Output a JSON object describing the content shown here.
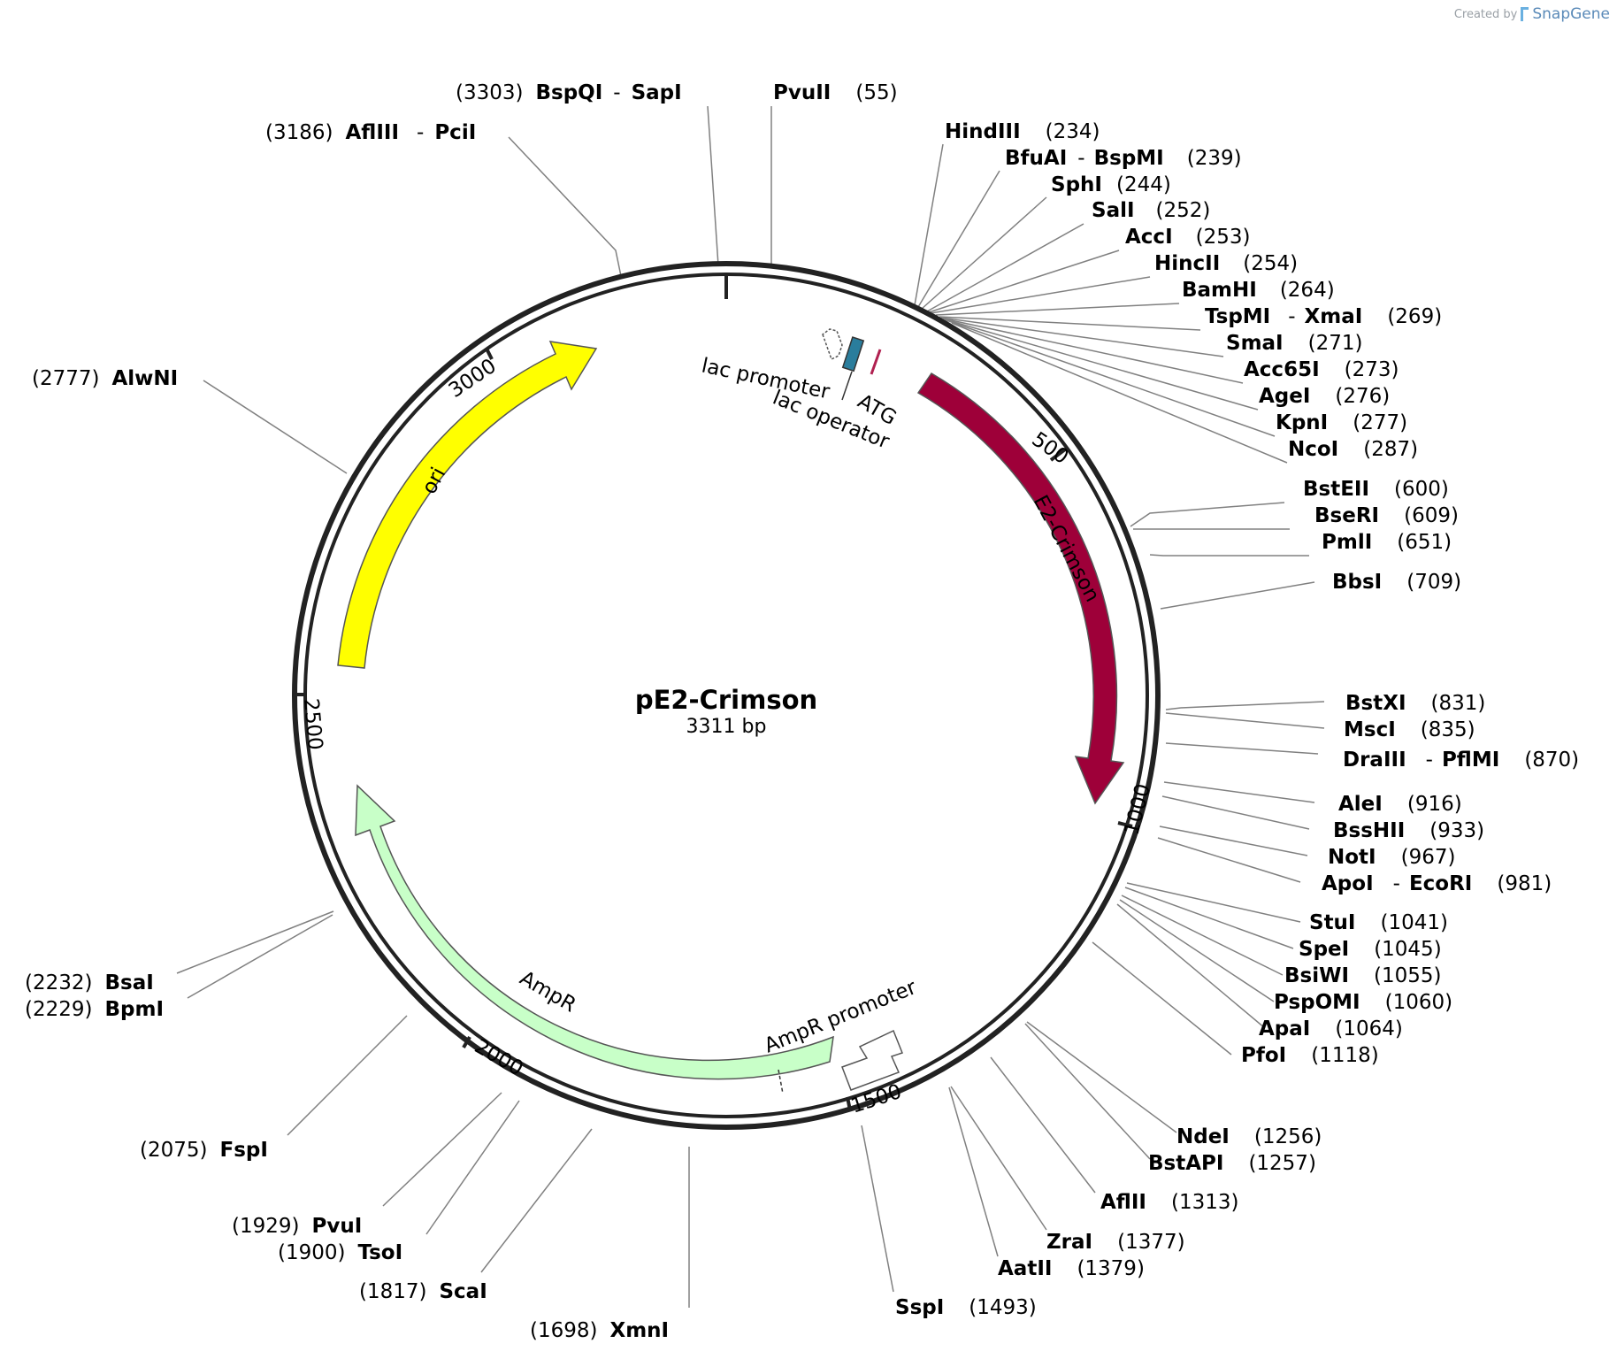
{
  "credit": {
    "prefix": "Created by",
    "brand": "SnapGene"
  },
  "plasmid": {
    "name": "pE2-Crimson",
    "size_label": "3311 bp"
  },
  "ticks": [
    "500",
    "1000",
    "1500",
    "2000",
    "2500",
    "3000"
  ],
  "features": [
    {
      "name": "E2-Crimson",
      "color": "#9e0039"
    },
    {
      "name": "ori",
      "color": "#ffff00"
    },
    {
      "name": "AmpR",
      "color": "#c8ffc8"
    },
    {
      "name": "AmpR promoter",
      "color": "#ffffff"
    },
    {
      "name": "lac promoter",
      "color": "#ffffff"
    },
    {
      "name": "lac operator",
      "color": "#2a7d9c"
    },
    {
      "name": "ATG",
      "color": "#b02050"
    }
  ],
  "sites": [
    {
      "pos": "(3303)",
      "name": "BspQI",
      "extra": "SapI"
    },
    {
      "pos": "(55)",
      "name": "PvuII",
      "extra": ""
    },
    {
      "pos": "(3186)",
      "name": "AflIII",
      "extra": "PciI"
    },
    {
      "pos": "(234)",
      "name": "HindIII",
      "extra": ""
    },
    {
      "pos": "(239)",
      "name": "BfuAI",
      "extra": "BspMI"
    },
    {
      "pos": "(244)",
      "name": "SphI",
      "extra": ""
    },
    {
      "pos": "(252)",
      "name": "SalI",
      "extra": ""
    },
    {
      "pos": "(253)",
      "name": "AccI",
      "extra": ""
    },
    {
      "pos": "(254)",
      "name": "HincII",
      "extra": ""
    },
    {
      "pos": "(264)",
      "name": "BamHI",
      "extra": ""
    },
    {
      "pos": "(269)",
      "name": "TspMI",
      "extra": "XmaI"
    },
    {
      "pos": "(271)",
      "name": "SmaI",
      "extra": ""
    },
    {
      "pos": "(273)",
      "name": "Acc65I",
      "extra": ""
    },
    {
      "pos": "(276)",
      "name": "AgeI",
      "extra": ""
    },
    {
      "pos": "(277)",
      "name": "KpnI",
      "extra": ""
    },
    {
      "pos": "(287)",
      "name": "NcoI",
      "extra": ""
    },
    {
      "pos": "(600)",
      "name": "BstEII",
      "extra": ""
    },
    {
      "pos": "(609)",
      "name": "BseRI",
      "extra": ""
    },
    {
      "pos": "(651)",
      "name": "PmlI",
      "extra": ""
    },
    {
      "pos": "(709)",
      "name": "BbsI",
      "extra": ""
    },
    {
      "pos": "(831)",
      "name": "BstXI",
      "extra": ""
    },
    {
      "pos": "(835)",
      "name": "MscI",
      "extra": ""
    },
    {
      "pos": "(870)",
      "name": "DraIII",
      "extra": "PflMI"
    },
    {
      "pos": "(916)",
      "name": "AleI",
      "extra": ""
    },
    {
      "pos": "(933)",
      "name": "BssHII",
      "extra": ""
    },
    {
      "pos": "(967)",
      "name": "NotI",
      "extra": ""
    },
    {
      "pos": "(981)",
      "name": "ApoI",
      "extra": "EcoRI"
    },
    {
      "pos": "(1041)",
      "name": "StuI",
      "extra": ""
    },
    {
      "pos": "(1045)",
      "name": "SpeI",
      "extra": ""
    },
    {
      "pos": "(1055)",
      "name": "BsiWI",
      "extra": ""
    },
    {
      "pos": "(1060)",
      "name": "PspOMI",
      "extra": ""
    },
    {
      "pos": "(1064)",
      "name": "ApaI",
      "extra": ""
    },
    {
      "pos": "(1118)",
      "name": "PfoI",
      "extra": ""
    },
    {
      "pos": "(1256)",
      "name": "NdeI",
      "extra": ""
    },
    {
      "pos": "(1257)",
      "name": "BstAPI",
      "extra": ""
    },
    {
      "pos": "(1313)",
      "name": "AflII",
      "extra": ""
    },
    {
      "pos": "(1377)",
      "name": "ZraI",
      "extra": ""
    },
    {
      "pos": "(1379)",
      "name": "AatII",
      "extra": ""
    },
    {
      "pos": "(1493)",
      "name": "SspI",
      "extra": ""
    },
    {
      "pos": "(2777)",
      "name": "AlwNI",
      "extra": ""
    },
    {
      "pos": "(2232)",
      "name": "BsaI",
      "extra": ""
    },
    {
      "pos": "(2229)",
      "name": "BpmI",
      "extra": ""
    },
    {
      "pos": "(2075)",
      "name": "FspI",
      "extra": ""
    },
    {
      "pos": "(1929)",
      "name": "PvuI",
      "extra": ""
    },
    {
      "pos": "(1900)",
      "name": "TsoI",
      "extra": ""
    },
    {
      "pos": "(1817)",
      "name": "ScaI",
      "extra": ""
    },
    {
      "pos": "(1698)",
      "name": "XmnI",
      "extra": ""
    }
  ]
}
